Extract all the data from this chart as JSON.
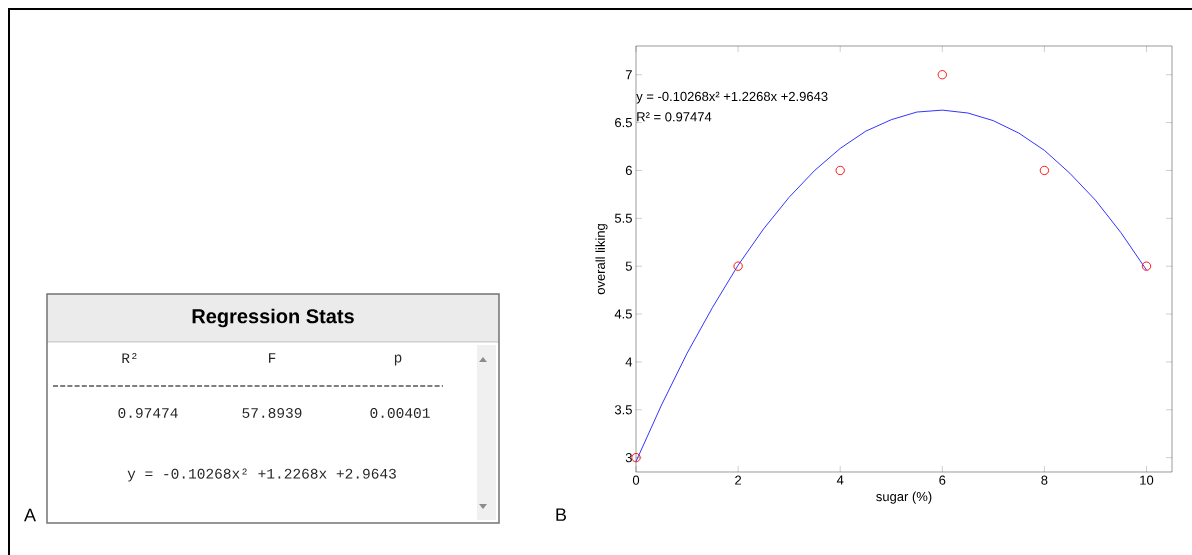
{
  "chart_data": [
    {
      "type": "other",
      "title": "Regression Stats",
      "annotations": [
        "A",
        "R²",
        "F",
        "p",
        "0.97474",
        "57.8939",
        "0.00401",
        "y = -0.10268x² +1.2268x +2.9643"
      ]
    },
    {
      "type": "scatter",
      "xlabel": "sugar (%)",
      "ylabel": "overall liking",
      "xlim": [
        0,
        10.5
      ],
      "ylim": [
        2.85,
        7.3
      ],
      "xticks": [
        0,
        2,
        4,
        6,
        8,
        10
      ],
      "yticks": [
        3,
        3.5,
        4,
        4.5,
        5,
        5.5,
        6,
        6.5,
        7
      ],
      "grid": false,
      "annotations": [
        "y = -0.10268x² +1.2268x +2.9643",
        "R² = 0.97474",
        "B"
      ],
      "series": [
        {
          "type": "scatter",
          "color": "#ff0000",
          "marker": "circle",
          "x": [
            0,
            2,
            4,
            6,
            8,
            10
          ],
          "values": [
            3,
            5,
            6,
            7,
            6,
            5
          ]
        },
        {
          "type": "line",
          "color": "#0000ff",
          "marker": "none",
          "x": [
            0,
            0.5,
            1,
            1.5,
            2,
            2.5,
            3,
            3.5,
            4,
            4.5,
            5,
            5.5,
            6,
            6.5,
            7,
            7.5,
            8,
            8.5,
            9,
            9.5,
            10
          ],
          "values": [
            2.96,
            3.55,
            4.09,
            4.57,
            5.01,
            5.39,
            5.72,
            6.0,
            6.23,
            6.41,
            6.53,
            6.61,
            6.63,
            6.6,
            6.52,
            6.39,
            6.21,
            5.97,
            5.69,
            5.35,
            4.96
          ]
        }
      ]
    }
  ]
}
